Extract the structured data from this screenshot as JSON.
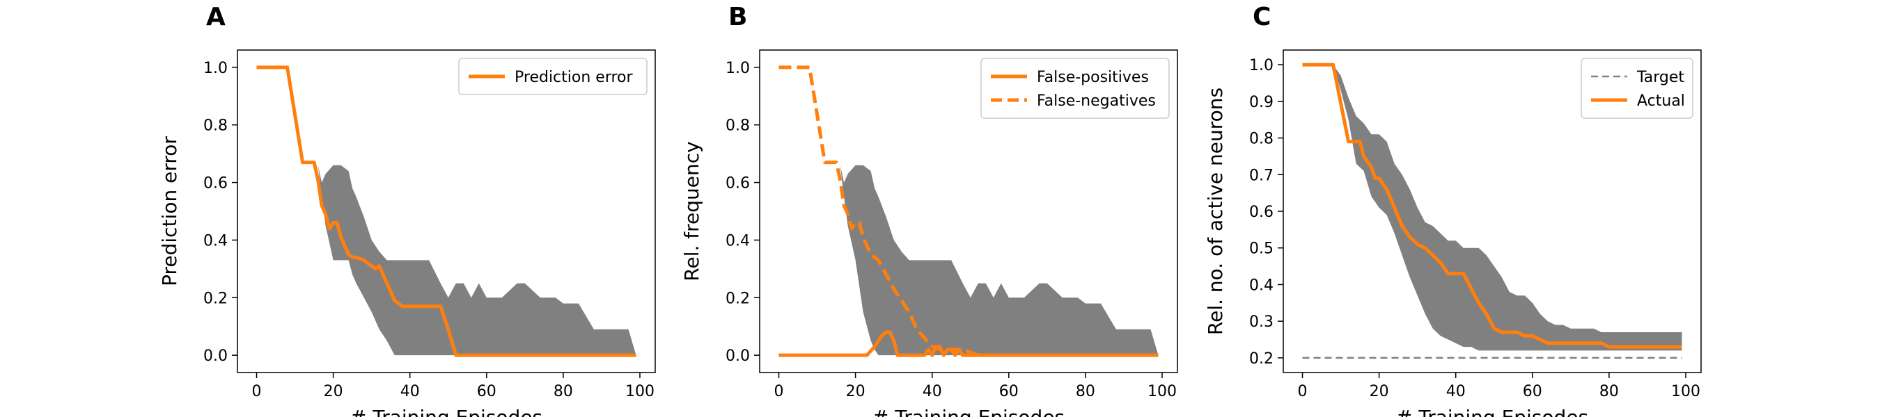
{
  "panel_letters": [
    "A",
    "B",
    "C"
  ],
  "chart_data": [
    {
      "type": "line",
      "panel": "A",
      "xlabel": "# Training Episodes",
      "ylabel": "Prediction error",
      "xlim": [
        -5,
        104
      ],
      "ylim": [
        -0.06,
        1.06
      ],
      "xticks": [
        0,
        20,
        40,
        60,
        80,
        100
      ],
      "yticks": [
        0.0,
        0.2,
        0.4,
        0.6,
        0.8,
        1.0
      ],
      "ytick_labels": [
        "0.0",
        "0.2",
        "0.4",
        "0.6",
        "0.8",
        "1.0"
      ],
      "grid": false,
      "legend": {
        "position": "top-right",
        "entries": [
          "Prediction error"
        ]
      },
      "band": {
        "color": "#808080",
        "x": [
          16,
          17,
          18,
          20,
          22,
          24,
          25,
          26,
          28,
          30,
          32,
          34,
          36,
          38,
          40,
          42,
          44,
          45,
          48,
          50,
          52,
          54,
          56,
          58,
          60,
          64,
          68,
          70,
          74,
          78,
          80,
          84,
          88,
          92,
          96,
          97,
          99
        ],
        "upper": [
          0.66,
          0.6,
          0.63,
          0.66,
          0.66,
          0.64,
          0.58,
          0.55,
          0.48,
          0.4,
          0.36,
          0.33,
          0.33,
          0.33,
          0.33,
          0.33,
          0.33,
          0.33,
          0.25,
          0.2,
          0.25,
          0.25,
          0.2,
          0.25,
          0.2,
          0.2,
          0.25,
          0.25,
          0.2,
          0.2,
          0.18,
          0.18,
          0.09,
          0.09,
          0.09,
          0.09,
          0.0
        ],
        "lower": [
          0.66,
          0.55,
          0.45,
          0.33,
          0.33,
          0.33,
          0.28,
          0.25,
          0.2,
          0.15,
          0.09,
          0.05,
          0.0,
          0.0,
          0.0,
          0.0,
          0.0,
          0.0,
          0.0,
          0.0,
          0.0,
          0.0,
          0.0,
          0.0,
          0.0,
          0.0,
          0.0,
          0.0,
          0.0,
          0.0,
          0.0,
          0.0,
          0.0,
          0.0,
          0.0,
          0.0,
          0.0
        ]
      },
      "series": [
        {
          "name": "Prediction error",
          "color": "#ff7f0e",
          "dash": "solid",
          "x": [
            0,
            8,
            12,
            15,
            16,
            17,
            18,
            19,
            20,
            21,
            22,
            24,
            25,
            26,
            28,
            30,
            31,
            32,
            34,
            36,
            38,
            40,
            44,
            48,
            50,
            52,
            56,
            60,
            70,
            80,
            90,
            99
          ],
          "y": [
            1.0,
            1.0,
            0.67,
            0.67,
            0.61,
            0.52,
            0.49,
            0.44,
            0.46,
            0.46,
            0.41,
            0.35,
            0.34,
            0.34,
            0.33,
            0.31,
            0.3,
            0.31,
            0.25,
            0.19,
            0.17,
            0.17,
            0.17,
            0.17,
            0.09,
            0.0,
            0.0,
            0.0,
            0.0,
            0.0,
            0.0,
            0.0
          ]
        }
      ]
    },
    {
      "type": "line",
      "panel": "B",
      "xlabel": "# Training Episodes",
      "ylabel": "Rel. frequency",
      "xlim": [
        -5,
        104
      ],
      "ylim": [
        -0.06,
        1.06
      ],
      "xticks": [
        0,
        20,
        40,
        60,
        80,
        100
      ],
      "yticks": [
        0.0,
        0.2,
        0.4,
        0.6,
        0.8,
        1.0
      ],
      "ytick_labels": [
        "0.0",
        "0.2",
        "0.4",
        "0.6",
        "0.8",
        "1.0"
      ],
      "grid": false,
      "legend": {
        "position": "top-right",
        "entries": [
          "False-positives",
          "False-negatives"
        ]
      },
      "band": {
        "color": "#808080",
        "x": [
          16,
          17,
          18,
          20,
          22,
          24,
          25,
          26,
          28,
          30,
          32,
          34,
          36,
          38,
          40,
          42,
          44,
          45,
          48,
          50,
          52,
          54,
          56,
          58,
          60,
          64,
          68,
          70,
          74,
          78,
          80,
          84,
          88,
          92,
          96,
          97,
          99
        ],
        "upper": [
          0.66,
          0.6,
          0.63,
          0.66,
          0.66,
          0.64,
          0.58,
          0.55,
          0.48,
          0.4,
          0.36,
          0.33,
          0.33,
          0.33,
          0.33,
          0.33,
          0.33,
          0.33,
          0.25,
          0.2,
          0.25,
          0.25,
          0.2,
          0.25,
          0.2,
          0.2,
          0.25,
          0.25,
          0.2,
          0.2,
          0.18,
          0.18,
          0.09,
          0.09,
          0.09,
          0.09,
          0.0
        ],
        "lower": [
          0.66,
          0.55,
          0.45,
          0.33,
          0.15,
          0.05,
          0.02,
          0.0,
          0.0,
          0.0,
          0.0,
          0.0,
          0.0,
          0.0,
          0.0,
          0.0,
          0.0,
          0.0,
          0.0,
          0.0,
          0.0,
          0.0,
          0.0,
          0.0,
          0.0,
          0.0,
          0.0,
          0.0,
          0.0,
          0.0,
          0.0,
          0.0,
          0.0,
          0.0,
          0.0,
          0.0,
          0.0
        ]
      },
      "series": [
        {
          "name": "False-positives",
          "color": "#ff7f0e",
          "dash": "solid",
          "x": [
            0,
            10,
            20,
            23,
            25,
            27,
            28,
            29,
            30,
            31,
            32,
            33,
            34,
            35,
            36,
            37,
            38,
            39,
            40,
            41,
            42,
            43,
            44,
            45,
            46,
            47,
            48,
            50,
            60,
            80,
            99
          ],
          "y": [
            0.0,
            0.0,
            0.0,
            0.0,
            0.03,
            0.07,
            0.08,
            0.08,
            0.05,
            0.0,
            0.0,
            0.0,
            0.0,
            0.0,
            0.0,
            0.0,
            0.0,
            0.02,
            0.0,
            0.03,
            0.03,
            0.0,
            0.02,
            0.02,
            0.0,
            0.02,
            0.0,
            0.0,
            0.0,
            0.0,
            0.0
          ]
        },
        {
          "name": "False-negatives",
          "color": "#ff7f0e",
          "dash": "dashed",
          "x": [
            0,
            8,
            12,
            15,
            16,
            17,
            18,
            19,
            20,
            21,
            22,
            24,
            25,
            26,
            28,
            30,
            32,
            34,
            36,
            38,
            40,
            42,
            44,
            46,
            48,
            52
          ],
          "y": [
            1.0,
            1.0,
            0.67,
            0.67,
            0.61,
            0.52,
            0.49,
            0.44,
            0.46,
            0.46,
            0.41,
            0.35,
            0.34,
            0.33,
            0.28,
            0.23,
            0.19,
            0.15,
            0.09,
            0.06,
            0.03,
            0.02,
            0.02,
            0.02,
            0.02,
            0.0
          ]
        }
      ]
    },
    {
      "type": "line",
      "panel": "C",
      "xlabel": "# Training Episodes",
      "ylabel": "Rel. no. of active neurons",
      "xlim": [
        -5,
        104
      ],
      "ylim": [
        0.16,
        1.04
      ],
      "xticks": [
        0,
        20,
        40,
        60,
        80,
        100
      ],
      "yticks": [
        0.2,
        0.3,
        0.4,
        0.5,
        0.6,
        0.7,
        0.8,
        0.9,
        1.0
      ],
      "ytick_labels": [
        "0.2",
        "0.3",
        "0.4",
        "0.5",
        "0.6",
        "0.7",
        "0.8",
        "0.9",
        "1.0"
      ],
      "grid": false,
      "legend": {
        "position": "top-right",
        "entries": [
          "Target",
          "Actual"
        ]
      },
      "band": {
        "color": "#808080",
        "x": [
          8,
          10,
          12,
          14,
          16,
          18,
          20,
          22,
          24,
          26,
          28,
          30,
          32,
          34,
          36,
          38,
          40,
          42,
          44,
          46,
          48,
          50,
          52,
          54,
          56,
          58,
          60,
          62,
          64,
          66,
          68,
          70,
          72,
          74,
          76,
          78,
          80,
          85,
          90,
          95,
          99
        ],
        "upper": [
          1.0,
          0.97,
          0.91,
          0.86,
          0.84,
          0.81,
          0.81,
          0.79,
          0.73,
          0.7,
          0.66,
          0.61,
          0.57,
          0.56,
          0.54,
          0.52,
          0.52,
          0.5,
          0.5,
          0.5,
          0.48,
          0.45,
          0.42,
          0.38,
          0.37,
          0.37,
          0.35,
          0.32,
          0.3,
          0.29,
          0.29,
          0.28,
          0.28,
          0.28,
          0.28,
          0.27,
          0.27,
          0.27,
          0.27,
          0.27,
          0.27
        ],
        "lower": [
          1.0,
          0.93,
          0.85,
          0.73,
          0.71,
          0.64,
          0.61,
          0.59,
          0.54,
          0.48,
          0.42,
          0.37,
          0.32,
          0.28,
          0.26,
          0.25,
          0.24,
          0.23,
          0.23,
          0.22,
          0.22,
          0.22,
          0.22,
          0.22,
          0.22,
          0.22,
          0.22,
          0.22,
          0.22,
          0.22,
          0.22,
          0.22,
          0.22,
          0.22,
          0.22,
          0.22,
          0.22,
          0.22,
          0.22,
          0.22,
          0.22
        ]
      },
      "series": [
        {
          "name": "Target",
          "color": "#808080",
          "dash": "dashed",
          "x": [
            0,
            99
          ],
          "y": [
            0.2,
            0.2
          ]
        },
        {
          "name": "Actual",
          "color": "#ff7f0e",
          "dash": "solid",
          "x": [
            0,
            8,
            12,
            15,
            16,
            18,
            19,
            20,
            22,
            24,
            26,
            28,
            30,
            32,
            34,
            36,
            38,
            40,
            42,
            44,
            46,
            48,
            50,
            52,
            54,
            56,
            58,
            60,
            62,
            64,
            66,
            68,
            70,
            72,
            74,
            76,
            78,
            80,
            90,
            99
          ],
          "y": [
            1.0,
            1.0,
            0.79,
            0.79,
            0.75,
            0.72,
            0.69,
            0.69,
            0.66,
            0.61,
            0.56,
            0.53,
            0.51,
            0.5,
            0.48,
            0.46,
            0.43,
            0.43,
            0.43,
            0.39,
            0.35,
            0.32,
            0.28,
            0.27,
            0.27,
            0.27,
            0.26,
            0.26,
            0.25,
            0.24,
            0.24,
            0.24,
            0.24,
            0.24,
            0.24,
            0.24,
            0.24,
            0.23,
            0.23,
            0.23
          ]
        }
      ]
    }
  ]
}
